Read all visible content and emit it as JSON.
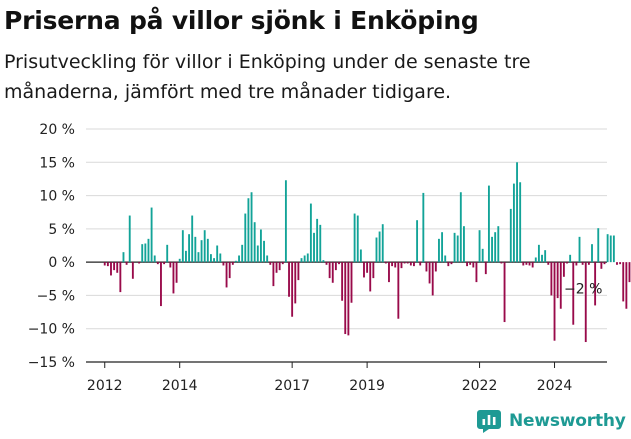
{
  "header": {
    "title": "Priserna på villor sjönk i Enköping",
    "subtitle": "Prisutveckling för villor i Enköping under de senaste tre månaderna, jämfört med tre månader tidigare."
  },
  "brand": {
    "name": "Newsworthy",
    "icon": "newsworthy-logo-icon",
    "color": "#1e9a94"
  },
  "colors": {
    "positive": "#12a398",
    "negative": "#990a4a",
    "gridline": "#d9d9d9",
    "axis": "#222222"
  },
  "chart_data": {
    "type": "bar",
    "title": "Priserna på villor sjönk i Enköping",
    "subtitle": "Prisutveckling för villor i Enköping under de senaste tre månaderna, jämfört med tre månader tidigare.",
    "xlabel": "",
    "ylabel": "",
    "ylim": [
      -15,
      20
    ],
    "xlim": [
      2011.5,
      2025.4
    ],
    "y_ticks": [
      20,
      15,
      10,
      5,
      0,
      -5,
      -10,
      -15
    ],
    "y_tick_labels": [
      "20 %",
      "15 %",
      "10 %",
      "5 %",
      "0 %",
      "−5 %",
      "−10 %",
      "−15 %"
    ],
    "x_ticks": [
      2012,
      2014,
      2017,
      2019,
      2022,
      2024
    ],
    "x_tick_labels": [
      "2012",
      "2014",
      "2017",
      "2019",
      "2022",
      "2024"
    ],
    "grid": true,
    "last_value_label": "−2 %",
    "x_start": 2012.0,
    "x_step": 0.0833333,
    "values": [
      -0.5,
      -0.6,
      -2.0,
      -1.2,
      -1.6,
      -4.5,
      1.5,
      -0.4,
      7.0,
      -2.5,
      0.0,
      -0.2,
      2.7,
      2.8,
      3.5,
      8.2,
      1.0,
      -0.3,
      -6.6,
      -0.3,
      2.6,
      -0.8,
      -4.7,
      -3.1,
      0.5,
      4.8,
      1.7,
      4.2,
      7.0,
      3.8,
      1.5,
      3.3,
      4.8,
      3.5,
      1.2,
      0.6,
      2.5,
      1.3,
      -0.5,
      -3.8,
      -2.4,
      -0.4,
      0.2,
      1.0,
      2.6,
      7.3,
      9.6,
      10.5,
      6.0,
      2.5,
      4.9,
      3.2,
      1.0,
      -0.4,
      -3.6,
      -1.6,
      -1.2,
      -0.3,
      12.3,
      -5.2,
      -8.2,
      -6.2,
      -2.7,
      0.6,
      1.0,
      1.3,
      8.8,
      4.4,
      6.5,
      5.6,
      0.3,
      -0.4,
      -2.4,
      -3.1,
      -1.2,
      -0.3,
      -5.8,
      -10.8,
      -11.0,
      -6.1,
      7.3,
      7.0,
      1.9,
      -2.3,
      -1.6,
      -4.4,
      -2.4,
      3.7,
      4.6,
      5.7,
      -0.2,
      -3.0,
      -0.6,
      -0.8,
      -8.5,
      -0.9,
      -0.2,
      -0.2,
      -0.5,
      -0.6,
      6.3,
      -0.5,
      10.4,
      -1.4,
      -3.2,
      -5.0,
      -1.4,
      3.5,
      4.5,
      1.0,
      -0.6,
      -0.3,
      4.4,
      4.0,
      10.5,
      5.4,
      -0.6,
      -0.4,
      -0.8,
      -3.0,
      4.8,
      2.0,
      -1.8,
      11.5,
      3.8,
      4.5,
      5.4,
      -0.2,
      -9.0,
      0.0,
      8.0,
      11.8,
      15.0,
      12.0,
      -0.5,
      -0.4,
      -0.5,
      -0.8,
      0.7,
      2.6,
      1.1,
      1.8,
      -0.4,
      -5.0,
      -11.8,
      -5.4,
      -7.0,
      -2.2,
      -0.2,
      1.1,
      -9.4,
      -0.5,
      3.8,
      -0.4,
      -12.0,
      -0.4,
      2.7,
      -6.5,
      5.1,
      -1.0,
      -0.3,
      4.2,
      4.0,
      4.0,
      -0.4,
      -0.3,
      -5.9,
      -7.0,
      -3.0,
      3.0,
      2.9,
      4.9,
      3.1,
      3.9,
      -0.5,
      -0.4,
      -2.0
    ]
  }
}
